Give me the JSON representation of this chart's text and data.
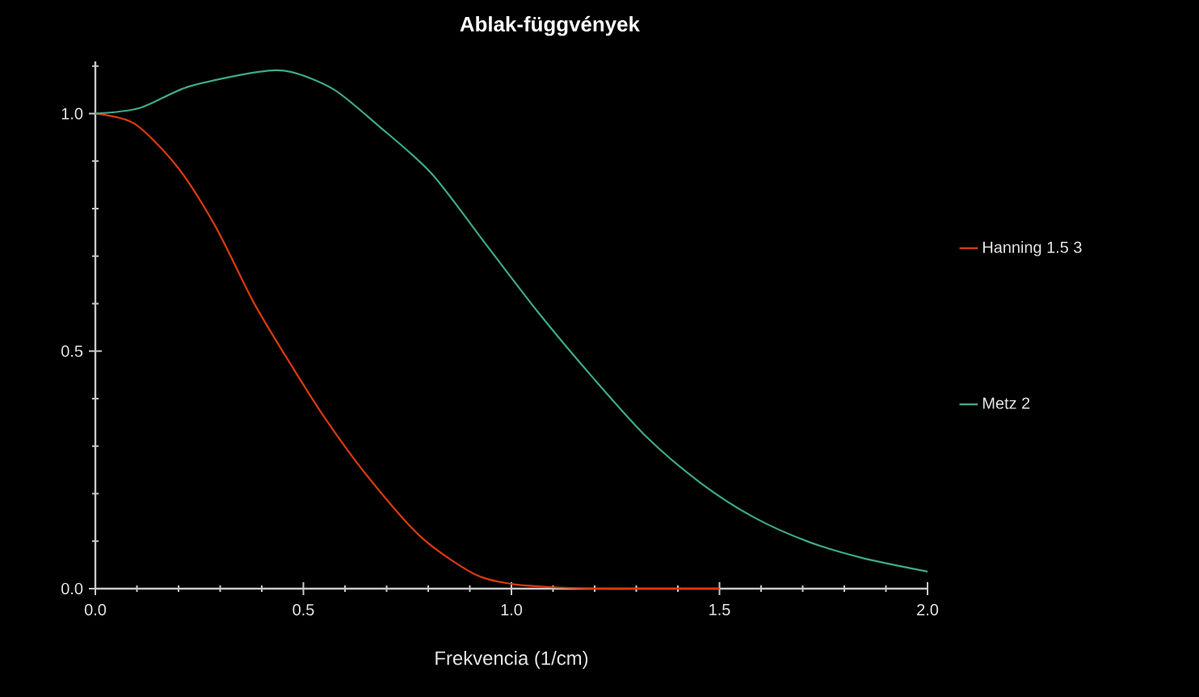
{
  "chart_data": {
    "type": "line",
    "title": "Ablak-függvények",
    "xlabel": "Frekvencia (1/cm)",
    "xlim": [
      0,
      2
    ],
    "ylim": [
      0,
      1.11
    ],
    "xticks": [
      {
        "value": 0,
        "label": "0.0"
      },
      {
        "value": 0.5,
        "label": "0.5"
      },
      {
        "value": 1,
        "label": "1.0"
      },
      {
        "value": 1.5,
        "label": "1.5"
      },
      {
        "value": 2,
        "label": "2.0"
      },
      {
        "value": 0.1,
        "label": null
      },
      {
        "value": 0.2,
        "label": null
      },
      {
        "value": 0.3,
        "label": null
      },
      {
        "value": 0.4,
        "label": null
      },
      {
        "value": 0.6,
        "label": null
      },
      {
        "value": 0.7,
        "label": null
      },
      {
        "value": 0.8,
        "label": null
      },
      {
        "value": 0.9,
        "label": null
      },
      {
        "value": 1.1,
        "label": null
      },
      {
        "value": 1.2,
        "label": null
      },
      {
        "value": 1.3,
        "label": null
      },
      {
        "value": 1.4,
        "label": null
      },
      {
        "value": 1.6,
        "label": null
      },
      {
        "value": 1.7,
        "label": null
      },
      {
        "value": 1.8,
        "label": null
      },
      {
        "value": 1.9,
        "label": null
      }
    ],
    "yticks": [
      {
        "value": 0,
        "label": "0.0"
      },
      {
        "value": 0.5,
        "label": "0.5"
      },
      {
        "value": 1,
        "label": "1.0"
      },
      {
        "value": 0.1,
        "label": null
      },
      {
        "value": 0.2,
        "label": null
      },
      {
        "value": 0.3,
        "label": null
      },
      {
        "value": 0.4,
        "label": null
      },
      {
        "value": 0.6,
        "label": null
      },
      {
        "value": 0.7,
        "label": null
      },
      {
        "value": 0.8,
        "label": null
      },
      {
        "value": 0.9,
        "label": null
      },
      {
        "value": 1.1,
        "label": null
      }
    ],
    "legend": "right",
    "grid": false,
    "marker": "none",
    "line_style": "solid",
    "series": [
      {
        "name": "Hanning 1.5 3",
        "color": "#d83a10",
        "x": [
          0,
          0.094,
          0.198,
          0.289,
          0.379,
          0.457,
          0.548,
          0.651,
          0.781,
          0.91,
          1.0,
          1.1,
          1.2,
          1.3,
          1.4,
          1.5
        ],
        "values": [
          1.0,
          0.979,
          0.887,
          0.762,
          0.605,
          0.49,
          0.364,
          0.24,
          0.11,
          0.031,
          0.01,
          0.003,
          0,
          0,
          0,
          0
        ]
      },
      {
        "name": "Metz 2",
        "color": "#3fa888",
        "x": [
          0,
          0.107,
          0.224,
          0.392,
          0.47,
          0.573,
          0.677,
          0.807,
          0.936,
          1.065,
          1.195,
          1.324,
          1.454,
          1.583,
          1.713,
          1.842,
          2.0
        ],
        "values": [
          1.0,
          1.012,
          1.057,
          1.088,
          1.088,
          1.051,
          0.977,
          0.875,
          0.728,
          0.581,
          0.445,
          0.32,
          0.223,
          0.15,
          0.099,
          0.065,
          0.036
        ]
      }
    ]
  }
}
